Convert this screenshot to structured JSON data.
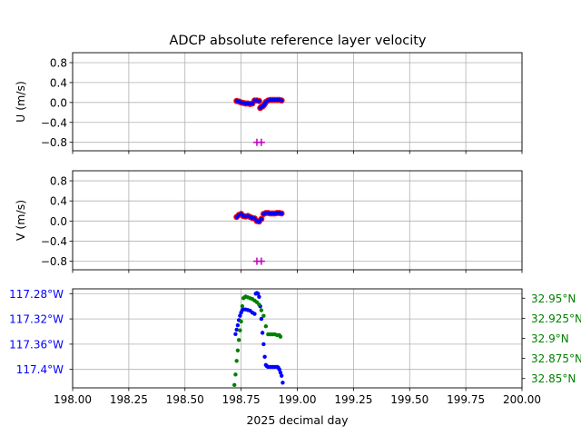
{
  "chart_data": [
    {
      "type": "scatter",
      "title": "ADCP absolute reference layer velocity",
      "ylabel": "U (m/s)",
      "xlim": [
        198.0,
        200.0
      ],
      "ylim": [
        -0.97,
        1.0
      ],
      "yticks": [
        0.8,
        0.4,
        0.0,
        -0.4,
        -0.8
      ],
      "ytick_labels": [
        "0.8",
        "0.4",
        "0.0",
        "−0.4",
        "−0.8"
      ],
      "grid": true,
      "series": [
        {
          "color": "#ff0000",
          "marker": "circle",
          "x": [
            198.73,
            198.74,
            198.75,
            198.76,
            198.77,
            198.78,
            198.79,
            198.8,
            198.81,
            198.82,
            198.83,
            198.835,
            198.84,
            198.845,
            198.85,
            198.855,
            198.86,
            198.87,
            198.88,
            198.89,
            198.9,
            198.91,
            198.92,
            198.93
          ],
          "y": [
            0.03,
            0.02,
            0.0,
            -0.01,
            -0.02,
            -0.02,
            -0.03,
            -0.02,
            0.04,
            0.04,
            0.03,
            -0.11,
            -0.09,
            -0.08,
            -0.06,
            -0.03,
            0.01,
            0.04,
            0.05,
            0.05,
            0.05,
            0.05,
            0.05,
            0.04
          ]
        },
        {
          "color": "#0000ff",
          "marker": "point",
          "x": [
            198.73,
            198.74,
            198.75,
            198.76,
            198.77,
            198.78,
            198.79,
            198.8,
            198.81,
            198.82,
            198.83,
            198.835,
            198.84,
            198.845,
            198.85,
            198.855,
            198.86,
            198.87,
            198.88,
            198.89,
            198.9,
            198.91,
            198.92,
            198.93
          ],
          "y": [
            0.03,
            0.02,
            0.0,
            -0.01,
            -0.02,
            -0.02,
            -0.03,
            -0.02,
            0.04,
            0.04,
            0.03,
            -0.11,
            -0.09,
            -0.08,
            -0.06,
            -0.03,
            0.01,
            0.04,
            0.05,
            0.05,
            0.05,
            0.05,
            0.05,
            0.04
          ]
        },
        {
          "color": "#bf00bf",
          "marker": "plus",
          "x": [
            198.82,
            198.84
          ],
          "y": [
            -0.8,
            -0.8
          ]
        }
      ]
    },
    {
      "type": "scatter",
      "ylabel": "V (m/s)",
      "xlim": [
        198.0,
        200.0
      ],
      "ylim": [
        -0.97,
        1.0
      ],
      "yticks": [
        0.8,
        0.4,
        0.0,
        -0.4,
        -0.8
      ],
      "ytick_labels": [
        "0.8",
        "0.4",
        "0.0",
        "−0.4",
        "−0.8"
      ],
      "grid": true,
      "series": [
        {
          "color": "#ff0000",
          "marker": "circle",
          "x": [
            198.73,
            198.74,
            198.75,
            198.76,
            198.77,
            198.78,
            198.79,
            198.8,
            198.81,
            198.82,
            198.83,
            198.84,
            198.85,
            198.86,
            198.87,
            198.88,
            198.89,
            198.9,
            198.91,
            198.92,
            198.93
          ],
          "y": [
            0.08,
            0.12,
            0.14,
            0.1,
            0.09,
            0.1,
            0.08,
            0.06,
            0.05,
            0.0,
            -0.01,
            0.04,
            0.14,
            0.16,
            0.16,
            0.15,
            0.15,
            0.15,
            0.16,
            0.16,
            0.15
          ]
        },
        {
          "color": "#0000ff",
          "marker": "point",
          "x": [
            198.73,
            198.74,
            198.75,
            198.76,
            198.77,
            198.78,
            198.79,
            198.8,
            198.81,
            198.82,
            198.83,
            198.84,
            198.85,
            198.86,
            198.87,
            198.88,
            198.89,
            198.9,
            198.91,
            198.92,
            198.93
          ],
          "y": [
            0.08,
            0.12,
            0.14,
            0.1,
            0.09,
            0.1,
            0.08,
            0.06,
            0.05,
            0.0,
            -0.01,
            0.04,
            0.14,
            0.16,
            0.16,
            0.15,
            0.15,
            0.15,
            0.16,
            0.16,
            0.15
          ]
        },
        {
          "color": "#bf00bf",
          "marker": "plus",
          "x": [
            198.82,
            198.84
          ],
          "y": [
            -0.8,
            -0.8
          ]
        }
      ]
    },
    {
      "type": "scatter",
      "xlabel": "2025 decimal day",
      "xlim": [
        198.0,
        200.0
      ],
      "xticks": [
        198.0,
        198.25,
        198.5,
        198.75,
        199.0,
        199.25,
        199.5,
        199.75,
        200.0
      ],
      "xtick_labels": [
        "198.00",
        "198.25",
        "198.50",
        "198.75",
        "199.00",
        "199.25",
        "199.50",
        "199.75",
        "200.00"
      ],
      "grid": true,
      "left_axis": {
        "color": "#0000ff",
        "ylim": [
          -117.4292,
          -117.2724
        ],
        "yticks": [
          -117.28,
          -117.32,
          -117.36,
          -117.4
        ],
        "ytick_labels": [
          "117.28°W",
          "117.32°W",
          "117.36°W",
          "117.4°W"
        ]
      },
      "right_axis": {
        "color": "#008000",
        "ylim": [
          32.8384,
          32.9616
        ],
        "yticks": [
          32.95,
          32.925,
          32.9,
          32.875,
          32.85
        ],
        "ytick_labels": [
          "32.95°N",
          "32.925°N",
          "32.9°N",
          "32.875°N",
          "32.85°N"
        ]
      },
      "series": [
        {
          "color": "#0000ff",
          "axis": "left",
          "marker": "point",
          "x": [
            198.725,
            198.73,
            198.735,
            198.74,
            198.745,
            198.75,
            198.755,
            198.76,
            198.77,
            198.78,
            198.79,
            198.8,
            198.81,
            198.815,
            198.82,
            198.825,
            198.83,
            198.835,
            198.84,
            198.845,
            198.85,
            198.855,
            198.86,
            198.865,
            198.87,
            198.88,
            198.89,
            198.9,
            198.91,
            198.915,
            198.92,
            198.925,
            198.93,
            198.935
          ],
          "y": [
            -117.344,
            -117.337,
            -117.33,
            -117.322,
            -117.315,
            -117.31,
            -117.306,
            -117.305,
            -117.305,
            -117.306,
            -117.307,
            -117.31,
            -117.312,
            -117.28,
            -117.279,
            -117.28,
            -117.285,
            -117.3,
            -117.32,
            -117.342,
            -117.36,
            -117.38,
            -117.393,
            -117.395,
            -117.396,
            -117.396,
            -117.396,
            -117.396,
            -117.396,
            -117.397,
            -117.4,
            -117.405,
            -117.41,
            -117.421
          ]
        },
        {
          "color": "#008000",
          "axis": "right",
          "marker": "point",
          "x": [
            198.72,
            198.725,
            198.73,
            198.735,
            198.74,
            198.745,
            198.75,
            198.755,
            198.76,
            198.765,
            198.77,
            198.78,
            198.79,
            198.8,
            198.81,
            198.82,
            198.83,
            198.84,
            198.85,
            198.86,
            198.87,
            198.88,
            198.89,
            198.9,
            198.91,
            198.92,
            198.925
          ],
          "y": [
            32.842,
            32.855,
            32.872,
            32.885,
            32.898,
            32.91,
            32.921,
            32.94,
            32.95,
            32.951,
            32.952,
            32.951,
            32.95,
            32.949,
            32.947,
            32.945,
            32.942,
            32.935,
            32.928,
            32.915,
            32.905,
            32.905,
            32.905,
            32.905,
            32.904,
            32.904,
            32.902
          ]
        }
      ]
    }
  ]
}
